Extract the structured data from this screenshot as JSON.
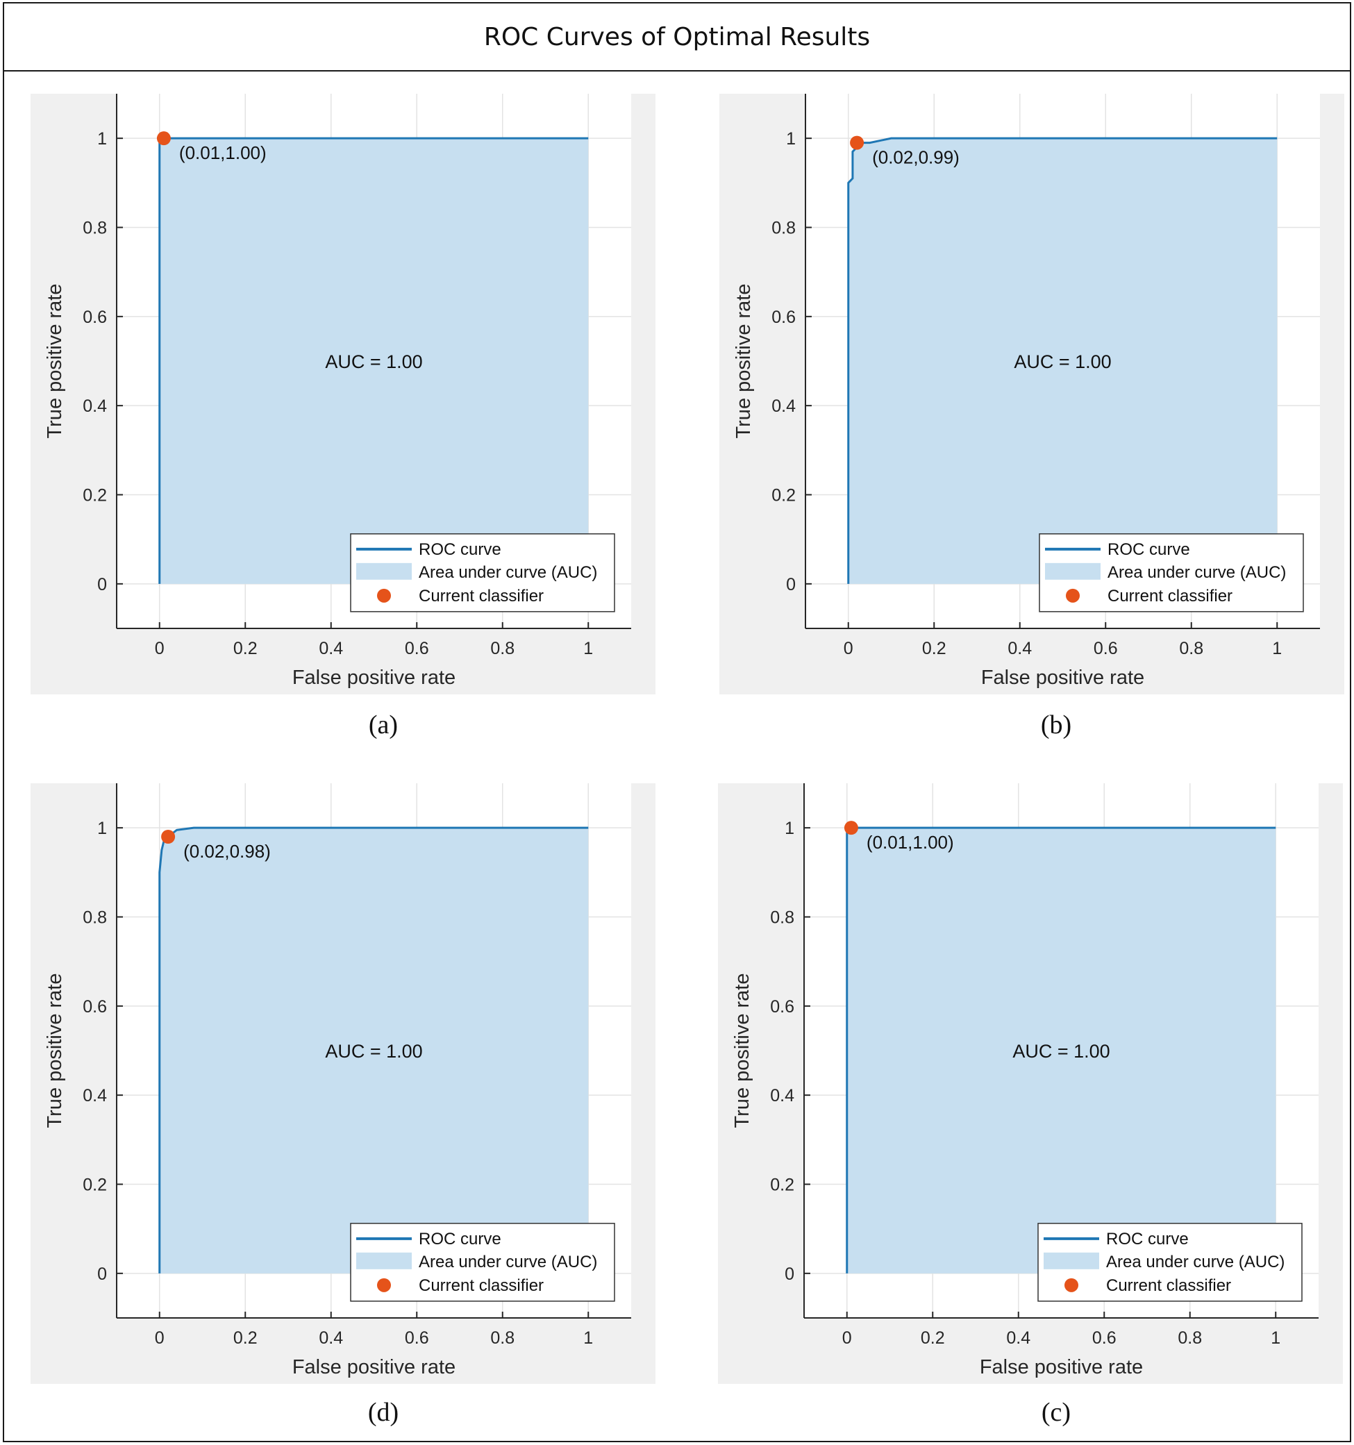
{
  "page_title": "ROC Curves of Optimal Results",
  "colors": {
    "curve": "#1f77b4",
    "area": "#c7dff0",
    "marker": "#e5531a",
    "grid": "#e3e3e3",
    "axis": "#262626"
  },
  "chart_data": [
    {
      "type": "area",
      "id": "a",
      "caption": "(a)",
      "xlabel": "False positive rate",
      "ylabel": "True positive rate",
      "xlim": [
        -0.1,
        1.1
      ],
      "ylim": [
        -0.1,
        1.1
      ],
      "xticks": [
        "0",
        "0.2",
        "0.4",
        "0.6",
        "0.8",
        "1"
      ],
      "yticks": [
        "0",
        "0.2",
        "0.4",
        "0.6",
        "0.8",
        "1"
      ],
      "roc": [
        [
          0,
          0
        ],
        [
          0,
          1.0
        ],
        [
          1,
          1.0
        ]
      ],
      "operating_point": [
        0.01,
        1.0
      ],
      "operating_label": "(0.01,1.00)",
      "auc_label": "AUC = 1.00",
      "legend": [
        "ROC curve",
        "Area under curve (AUC)",
        "Current classifier"
      ]
    },
    {
      "type": "area",
      "id": "b",
      "caption": "(b)",
      "xlabel": "False positive rate",
      "ylabel": "True positive rate",
      "xlim": [
        -0.1,
        1.1
      ],
      "ylim": [
        -0.1,
        1.1
      ],
      "xticks": [
        "0",
        "0.2",
        "0.4",
        "0.6",
        "0.8",
        "1"
      ],
      "yticks": [
        "0",
        "0.2",
        "0.4",
        "0.6",
        "0.8",
        "1"
      ],
      "roc": [
        [
          0,
          0
        ],
        [
          0,
          0.9
        ],
        [
          0.01,
          0.91
        ],
        [
          0.01,
          0.97
        ],
        [
          0.02,
          0.98
        ],
        [
          0.02,
          0.99
        ],
        [
          0.05,
          0.99
        ],
        [
          0.1,
          1.0
        ],
        [
          1,
          1.0
        ]
      ],
      "operating_point": [
        0.02,
        0.99
      ],
      "operating_label": "(0.02,0.99)",
      "auc_label": "AUC = 1.00",
      "legend": [
        "ROC curve",
        "Area under curve (AUC)",
        "Current classifier"
      ]
    },
    {
      "type": "area",
      "id": "d",
      "caption": "(d)",
      "xlabel": "False positive rate",
      "ylabel": "True positive rate",
      "xlim": [
        -0.1,
        1.1
      ],
      "ylim": [
        -0.1,
        1.1
      ],
      "xticks": [
        "0",
        "0.2",
        "0.4",
        "0.6",
        "0.8",
        "1"
      ],
      "yticks": [
        "0",
        "0.2",
        "0.4",
        "0.6",
        "0.8",
        "1"
      ],
      "roc": [
        [
          0,
          0
        ],
        [
          0,
          0.9
        ],
        [
          0.005,
          0.95
        ],
        [
          0.01,
          0.97
        ],
        [
          0.02,
          0.98
        ],
        [
          0.04,
          0.995
        ],
        [
          0.08,
          1.0
        ],
        [
          1,
          1.0
        ]
      ],
      "operating_point": [
        0.02,
        0.98
      ],
      "operating_label": "(0.02,0.98)",
      "auc_label": "AUC = 1.00",
      "legend": [
        "ROC curve",
        "Area under curve (AUC)",
        "Current classifier"
      ]
    },
    {
      "type": "area",
      "id": "c",
      "caption": "(c)",
      "xlabel": "False positive rate",
      "ylabel": "True positive rate",
      "xlim": [
        -0.1,
        1.1
      ],
      "ylim": [
        -0.1,
        1.1
      ],
      "xticks": [
        "0",
        "0.2",
        "0.4",
        "0.6",
        "0.8",
        "1"
      ],
      "yticks": [
        "0",
        "0.2",
        "0.4",
        "0.6",
        "0.8",
        "1"
      ],
      "roc": [
        [
          0,
          0
        ],
        [
          0,
          1.0
        ],
        [
          1,
          1.0
        ]
      ],
      "operating_point": [
        0.01,
        1.0
      ],
      "operating_label": "(0.01,1.00)",
      "auc_label": "AUC = 1.00",
      "legend": [
        "ROC curve",
        "Area under curve (AUC)",
        "Current classifier"
      ]
    }
  ]
}
